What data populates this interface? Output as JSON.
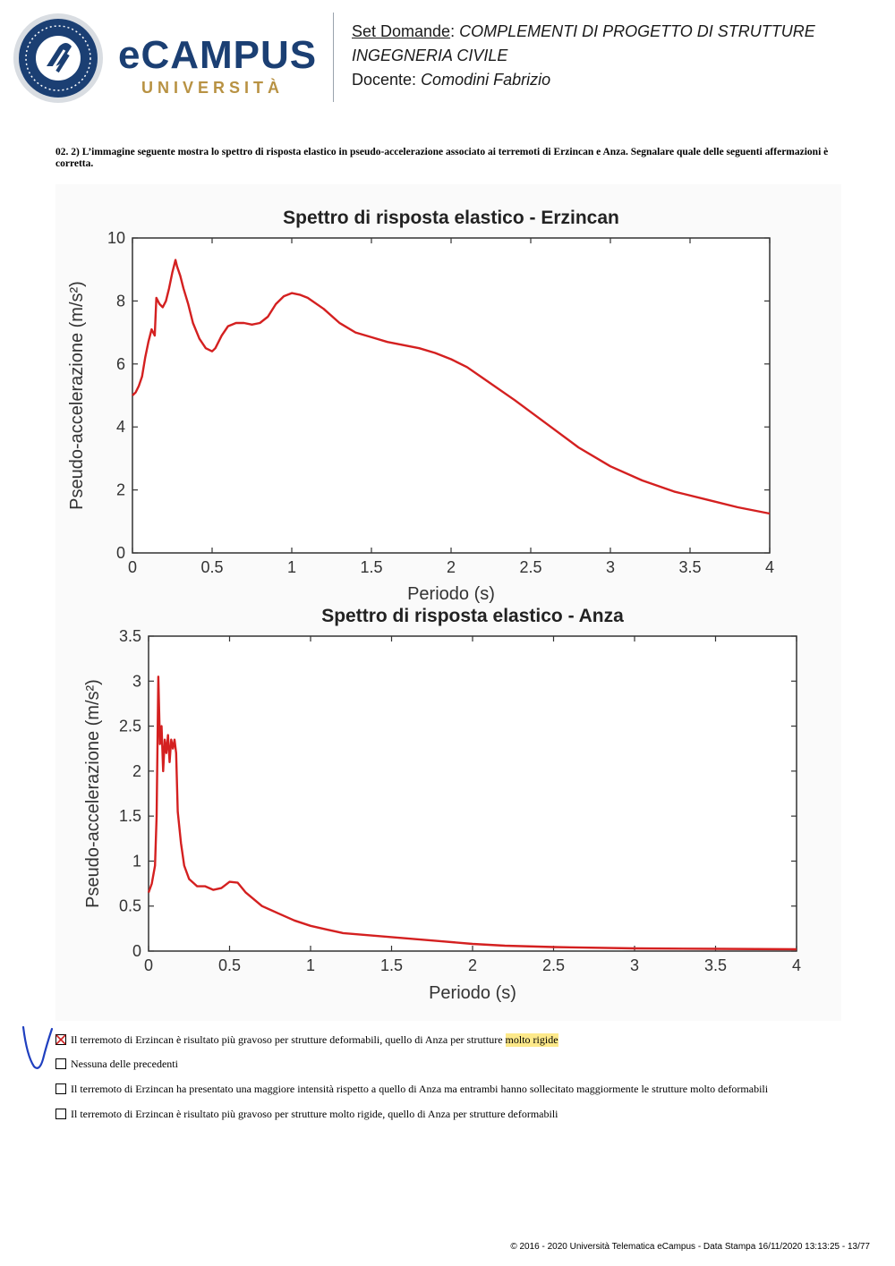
{
  "header": {
    "logo_text": "eCAMPUS",
    "logo_sub": "UNIVERSITÀ",
    "set_label": "Set Domande",
    "course_line1": "COMPLEMENTI DI PROGETTO DI STRUTTURE",
    "course_line2": "INGEGNERIA CIVILE",
    "docente_label": "Docente:",
    "docente_name": "Comodini Fabrizio"
  },
  "question": {
    "text": "02.   2) L’immagine seguente mostra lo spettro di risposta elastico in pseudo-accelerazione associato ai terremoti di Erzincan e Anza. Segnalare quale delle seguenti affermazioni è corretta."
  },
  "chart_data": [
    {
      "type": "line",
      "title": "Spettro di risposta elastico - Erzincan",
      "xlabel": "Periodo (s)",
      "ylabel": "Pseudo-accelerazione (m/s²)",
      "xlim": [
        0,
        4
      ],
      "ylim": [
        0,
        10
      ],
      "xticks": [
        0,
        0.5,
        1,
        1.5,
        2,
        2.5,
        3,
        3.5,
        4
      ],
      "xtick_labels": [
        "0",
        "0.5",
        "1",
        "1.5",
        "2",
        "2.5",
        "3",
        "3.5",
        "4"
      ],
      "yticks": [
        0,
        2,
        4,
        6,
        8,
        10
      ],
      "ytick_labels": [
        "0",
        "2",
        "4",
        "6",
        "8",
        "10"
      ],
      "grid": false,
      "color": "#d42020",
      "series": [
        {
          "x": [
            0,
            0.02,
            0.04,
            0.06,
            0.08,
            0.1,
            0.12,
            0.14,
            0.15,
            0.17,
            0.19,
            0.21,
            0.23,
            0.25,
            0.27,
            0.28,
            0.3,
            0.32,
            0.35,
            0.38,
            0.42,
            0.46,
            0.5,
            0.52,
            0.56,
            0.6,
            0.65,
            0.7,
            0.75,
            0.8,
            0.85,
            0.9,
            0.95,
            1.0,
            1.05,
            1.1,
            1.2,
            1.3,
            1.4,
            1.5,
            1.6,
            1.7,
            1.8,
            1.9,
            2.0,
            2.1,
            2.2,
            2.4,
            2.6,
            2.8,
            3.0,
            3.2,
            3.4,
            3.6,
            3.8,
            4.0
          ],
          "y": [
            5.0,
            5.1,
            5.3,
            5.6,
            6.2,
            6.7,
            7.1,
            6.9,
            8.1,
            7.9,
            7.8,
            8.0,
            8.4,
            8.9,
            9.3,
            9.1,
            8.8,
            8.4,
            7.9,
            7.3,
            6.8,
            6.5,
            6.4,
            6.5,
            6.9,
            7.2,
            7.3,
            7.3,
            7.25,
            7.3,
            7.5,
            7.9,
            8.15,
            8.25,
            8.2,
            8.1,
            7.75,
            7.3,
            7.0,
            6.85,
            6.7,
            6.6,
            6.5,
            6.35,
            6.15,
            5.9,
            5.55,
            4.85,
            4.1,
            3.35,
            2.75,
            2.3,
            1.95,
            1.7,
            1.45,
            1.25
          ]
        }
      ]
    },
    {
      "type": "line",
      "title": "Spettro di risposta elastico - Anza",
      "xlabel": "Periodo (s)",
      "ylabel": "Pseudo-accelerazione (m/s²)",
      "xlim": [
        0,
        4
      ],
      "ylim": [
        0,
        3.5
      ],
      "xticks": [
        0,
        0.5,
        1,
        1.5,
        2,
        2.5,
        3,
        3.5,
        4
      ],
      "xtick_labels": [
        "0",
        "0.5",
        "1",
        "1.5",
        "2",
        "2.5",
        "3",
        "3.5",
        "4"
      ],
      "yticks": [
        0,
        0.5,
        1,
        1.5,
        2,
        2.5,
        3,
        3.5
      ],
      "ytick_labels": [
        "0",
        "0.5",
        "1",
        "1.5",
        "2",
        "2.5",
        "3",
        "3.5"
      ],
      "grid": false,
      "color": "#d42020",
      "series": [
        {
          "x": [
            0,
            0.02,
            0.04,
            0.05,
            0.06,
            0.07,
            0.08,
            0.09,
            0.1,
            0.11,
            0.12,
            0.13,
            0.14,
            0.15,
            0.16,
            0.17,
            0.18,
            0.2,
            0.22,
            0.25,
            0.3,
            0.35,
            0.4,
            0.45,
            0.5,
            0.55,
            0.6,
            0.7,
            0.8,
            0.9,
            1.0,
            1.1,
            1.2,
            1.4,
            1.6,
            1.8,
            2.0,
            2.2,
            2.5,
            3.0,
            3.5,
            4.0
          ],
          "y": [
            0.65,
            0.75,
            0.95,
            1.5,
            3.05,
            2.3,
            2.5,
            2.0,
            2.35,
            2.2,
            2.4,
            2.1,
            2.35,
            2.25,
            2.35,
            2.2,
            1.55,
            1.2,
            0.95,
            0.8,
            0.72,
            0.72,
            0.68,
            0.7,
            0.77,
            0.76,
            0.65,
            0.5,
            0.42,
            0.34,
            0.28,
            0.24,
            0.2,
            0.17,
            0.14,
            0.11,
            0.08,
            0.06,
            0.045,
            0.03,
            0.025,
            0.02
          ]
        }
      ]
    }
  ],
  "answers": [
    {
      "text_main": "Il terremoto di Erzincan è risultato più gravoso per strutture deformabili, quello di Anza per strutture ",
      "text_highlight": "molto rigide",
      "checked": true
    },
    {
      "text_main": "Nessuna delle precedenti",
      "text_highlight": "",
      "checked": false
    },
    {
      "text_main": "Il terremoto di Erzincan ha presentato una maggiore intensità rispetto a quello di Anza ma entrambi hanno sollecitato maggiormente le strutture molto deformabili",
      "text_highlight": "",
      "checked": false
    },
    {
      "text_main": "Il terremoto di Erzincan è risultato più gravoso per strutture molto rigide, quello di Anza per strutture deformabili",
      "text_highlight": "",
      "checked": false
    }
  ],
  "footer": {
    "text": "© 2016 - 2020 Università Telematica eCampus - Data Stampa 16/11/2020 13:13:25 - 13/77"
  }
}
